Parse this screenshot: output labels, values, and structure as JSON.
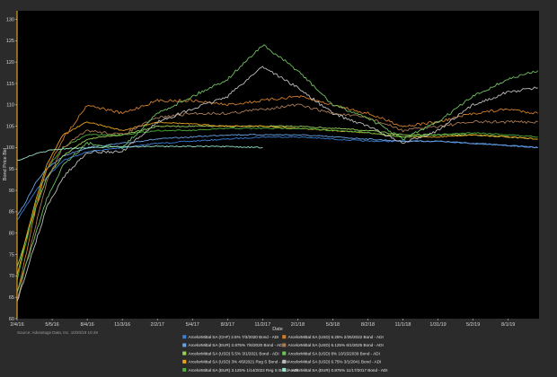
{
  "chart_data": {
    "type": "line",
    "xlabel": "Date",
    "ylabel": "Bond Price Bid",
    "ylim": [
      60,
      132
    ],
    "yticks": [
      60,
      65,
      70,
      75,
      80,
      85,
      90,
      95,
      100,
      105,
      110,
      115,
      120,
      125,
      130
    ],
    "xlim": [
      "2016-02-04",
      "2019-10-20"
    ],
    "xticks": [
      {
        "label": "2/4/16",
        "date": "2016-02-04"
      },
      {
        "label": "5/5/16",
        "date": "2016-05-05"
      },
      {
        "label": "8/4/16",
        "date": "2016-08-04"
      },
      {
        "label": "11/3/16",
        "date": "2016-11-03"
      },
      {
        "label": "2/2/17",
        "date": "2017-02-02"
      },
      {
        "label": "5/4/17",
        "date": "2017-05-04"
      },
      {
        "label": "8/3/17",
        "date": "2017-08-03"
      },
      {
        "label": "11/2/17",
        "date": "2017-11-02"
      },
      {
        "label": "2/1/18",
        "date": "2018-02-01"
      },
      {
        "label": "5/3/18",
        "date": "2018-05-03"
      },
      {
        "label": "8/2/18",
        "date": "2018-08-02"
      },
      {
        "label": "11/1/18",
        "date": "2018-11-01"
      },
      {
        "label": "1/31/19",
        "date": "2019-01-31"
      },
      {
        "label": "5/2/19",
        "date": "2019-05-02"
      },
      {
        "label": "8/1/19",
        "date": "2019-08-01"
      }
    ],
    "grid": false,
    "legend_position": "bottom",
    "source": "Source: Advantage Data, Inc. 10/20/19 10:49",
    "series": [
      {
        "name": "ArcelorMittal SA (CHF) 2.5% 7/3/2020 Bond - ADI",
        "color": "#3a7fd5",
        "points": [
          [
            "2016-02-04",
            83
          ],
          [
            "2016-02-25",
            86
          ],
          [
            "2016-03-24",
            90
          ],
          [
            "2016-04-21",
            93
          ],
          [
            "2016-06-02",
            97
          ],
          [
            "2016-08-04",
            99
          ],
          [
            "2016-11-03",
            100
          ],
          [
            "2017-02-02",
            101
          ],
          [
            "2017-05-04",
            101.5
          ],
          [
            "2017-08-03",
            102
          ],
          [
            "2017-11-02",
            102.5
          ],
          [
            "2018-02-01",
            102.5
          ],
          [
            "2018-05-03",
            102
          ],
          [
            "2018-08-02",
            101.5
          ],
          [
            "2018-11-01",
            101.5
          ],
          [
            "2019-01-31",
            101.5
          ],
          [
            "2019-05-02",
            101
          ],
          [
            "2019-08-01",
            100.5
          ],
          [
            "2019-10-17",
            100
          ]
        ]
      },
      {
        "name": "ArcelorMittal SA (EUR) 2.875% 7/6/2020 Bond - ADI",
        "color": "#6aa0e0",
        "points": [
          [
            "2016-02-04",
            84
          ],
          [
            "2016-02-25",
            87
          ],
          [
            "2016-03-24",
            92
          ],
          [
            "2016-04-21",
            95
          ],
          [
            "2016-06-02",
            98
          ],
          [
            "2016-08-04",
            100
          ],
          [
            "2016-11-03",
            101
          ],
          [
            "2017-02-02",
            102
          ],
          [
            "2017-05-04",
            102.5
          ],
          [
            "2017-08-03",
            103
          ],
          [
            "2017-11-02",
            103
          ],
          [
            "2018-02-01",
            103
          ],
          [
            "2018-05-03",
            102.5
          ],
          [
            "2018-08-02",
            102
          ],
          [
            "2018-11-01",
            101.5
          ],
          [
            "2019-01-31",
            101.5
          ],
          [
            "2019-05-02",
            101
          ],
          [
            "2019-08-01",
            100.5
          ],
          [
            "2019-10-17",
            100
          ]
        ]
      },
      {
        "name": "ArcelorMittal SA (USD) 5.5% 3/1/2021 Bond - ADI",
        "color": "#9bd35a",
        "points": [
          [
            "2016-02-04",
            72
          ],
          [
            "2016-02-25",
            78
          ],
          [
            "2016-03-24",
            86
          ],
          [
            "2016-04-21",
            93
          ],
          [
            "2016-06-02",
            98
          ],
          [
            "2016-08-04",
            102
          ],
          [
            "2016-11-03",
            103
          ],
          [
            "2017-02-02",
            105
          ],
          [
            "2017-05-04",
            105
          ],
          [
            "2017-08-03",
            105
          ],
          [
            "2017-11-02",
            105
          ],
          [
            "2018-02-01",
            105
          ],
          [
            "2018-05-03",
            104.5
          ],
          [
            "2018-08-02",
            104
          ],
          [
            "2018-11-01",
            103
          ],
          [
            "2019-01-31",
            103
          ],
          [
            "2019-05-02",
            103
          ],
          [
            "2019-08-01",
            102.5
          ],
          [
            "2019-10-17",
            102
          ]
        ]
      },
      {
        "name": "ArcelorMittal SA (USD) 3% 4/9/2021 Reg S Bond - ADI",
        "color": "#e6a11f",
        "points": [
          [
            "2016-02-04",
            70
          ],
          [
            "2016-02-25",
            78
          ],
          [
            "2016-03-24",
            88
          ],
          [
            "2016-04-21",
            96
          ],
          [
            "2016-06-02",
            103
          ],
          [
            "2016-08-04",
            106
          ],
          [
            "2016-11-03",
            104
          ],
          [
            "2017-02-02",
            106
          ],
          [
            "2017-05-04",
            105.5
          ],
          [
            "2017-08-03",
            105
          ],
          [
            "2017-11-02",
            105
          ],
          [
            "2018-02-01",
            104.5
          ],
          [
            "2018-05-03",
            104
          ],
          [
            "2018-08-02",
            103.5
          ],
          [
            "2018-11-01",
            102.5
          ],
          [
            "2019-01-31",
            102.5
          ],
          [
            "2019-05-02",
            103
          ],
          [
            "2019-08-01",
            102.5
          ],
          [
            "2019-10-17",
            102
          ]
        ]
      },
      {
        "name": "ArcelorMittal SA (EUR) 3.125% 1/14/2022 Reg S Bond - ADI",
        "color": "#4fae3a",
        "points": [
          [
            "2016-02-04",
            69
          ],
          [
            "2016-02-25",
            77
          ],
          [
            "2016-03-24",
            87
          ],
          [
            "2016-04-21",
            95
          ],
          [
            "2016-06-02",
            100
          ],
          [
            "2016-08-04",
            103
          ],
          [
            "2016-11-03",
            103
          ],
          [
            "2017-02-02",
            104
          ],
          [
            "2017-05-04",
            104
          ],
          [
            "2017-08-03",
            104.5
          ],
          [
            "2017-11-02",
            104.5
          ],
          [
            "2018-02-01",
            104.5
          ],
          [
            "2018-05-03",
            104
          ],
          [
            "2018-08-02",
            103.5
          ],
          [
            "2018-11-01",
            102.5
          ],
          [
            "2019-01-31",
            103
          ],
          [
            "2019-05-02",
            103.5
          ],
          [
            "2019-08-01",
            103
          ],
          [
            "2019-10-17",
            102.5
          ]
        ]
      },
      {
        "name": "ArcelorMittal SA (USD) 6.25% 2/25/2022 Bond - ADI",
        "color": "#d07d2a",
        "points": [
          [
            "2016-02-04",
            66
          ],
          [
            "2016-02-25",
            74
          ],
          [
            "2016-03-24",
            86
          ],
          [
            "2016-04-21",
            95
          ],
          [
            "2016-06-02",
            102
          ],
          [
            "2016-08-04",
            110
          ],
          [
            "2016-11-03",
            108
          ],
          [
            "2017-02-02",
            111
          ],
          [
            "2017-05-04",
            111
          ],
          [
            "2017-08-03",
            110
          ],
          [
            "2017-11-02",
            111
          ],
          [
            "2018-02-01",
            112
          ],
          [
            "2018-05-03",
            110
          ],
          [
            "2018-08-02",
            108
          ],
          [
            "2018-11-01",
            105
          ],
          [
            "2019-01-31",
            106
          ],
          [
            "2019-05-02",
            108
          ],
          [
            "2019-08-01",
            109
          ],
          [
            "2019-10-17",
            108
          ]
        ]
      },
      {
        "name": "ArcelorMittal SA (USD) 6.125% 6/1/2025 Bond - ADI",
        "color": "#a97a55",
        "points": [
          [
            "2016-02-04",
            64
          ],
          [
            "2016-02-25",
            72
          ],
          [
            "2016-03-24",
            82
          ],
          [
            "2016-04-21",
            92
          ],
          [
            "2016-06-02",
            100
          ],
          [
            "2016-08-04",
            104
          ],
          [
            "2016-11-03",
            103
          ],
          [
            "2017-02-02",
            107
          ],
          [
            "2017-05-04",
            108
          ],
          [
            "2017-08-03",
            108
          ],
          [
            "2017-11-02",
            109
          ],
          [
            "2018-02-01",
            110
          ],
          [
            "2018-05-03",
            108
          ],
          [
            "2018-08-02",
            107
          ],
          [
            "2018-11-01",
            104
          ],
          [
            "2019-01-31",
            105
          ],
          [
            "2019-05-02",
            106
          ],
          [
            "2019-08-01",
            106
          ],
          [
            "2019-10-17",
            106
          ]
        ]
      },
      {
        "name": "ArcelorMittal SA (USD) 8% 10/15/2039 Bond - ADI",
        "color": "#6fc060",
        "points": [
          [
            "2016-02-04",
            66
          ],
          [
            "2016-02-25",
            72
          ],
          [
            "2016-03-24",
            80
          ],
          [
            "2016-04-21",
            88
          ],
          [
            "2016-06-02",
            96
          ],
          [
            "2016-08-04",
            101
          ],
          [
            "2016-11-03",
            100
          ],
          [
            "2017-02-02",
            108
          ],
          [
            "2017-05-04",
            112
          ],
          [
            "2017-08-03",
            116
          ],
          [
            "2017-11-02",
            124
          ],
          [
            "2018-02-01",
            118
          ],
          [
            "2018-05-03",
            110
          ],
          [
            "2018-08-02",
            107
          ],
          [
            "2018-11-01",
            102
          ],
          [
            "2019-01-31",
            106
          ],
          [
            "2019-05-02",
            112
          ],
          [
            "2019-08-01",
            116
          ],
          [
            "2019-10-17",
            118
          ]
        ]
      },
      {
        "name": "ArcelorMittal SA (USD) 6.75% 3/1/2041 Bond - ADI",
        "color": "#bdbdbd",
        "points": [
          [
            "2016-02-04",
            64
          ],
          [
            "2016-02-25",
            70
          ],
          [
            "2016-03-24",
            78
          ],
          [
            "2016-04-21",
            86
          ],
          [
            "2016-06-02",
            93
          ],
          [
            "2016-08-04",
            99
          ],
          [
            "2016-11-03",
            99
          ],
          [
            "2017-02-02",
            106
          ],
          [
            "2017-05-04",
            109
          ],
          [
            "2017-08-03",
            112
          ],
          [
            "2017-11-02",
            119
          ],
          [
            "2018-02-01",
            114
          ],
          [
            "2018-05-03",
            108
          ],
          [
            "2018-08-02",
            105
          ],
          [
            "2018-11-01",
            101
          ],
          [
            "2019-01-31",
            104
          ],
          [
            "2019-05-02",
            110
          ],
          [
            "2019-08-01",
            113
          ],
          [
            "2019-10-17",
            114
          ]
        ]
      },
      {
        "name": "ArcelorMittal SA (EUR) 0.875% 11/17/2017 Bond - ADI",
        "color": "#9be3c8",
        "points": [
          [
            "2016-02-04",
            97
          ],
          [
            "2016-03-24",
            98.5
          ],
          [
            "2016-05-05",
            99.5
          ],
          [
            "2016-08-04",
            100
          ],
          [
            "2016-11-03",
            100.2
          ],
          [
            "2017-02-02",
            100.3
          ],
          [
            "2017-05-04",
            100.3
          ],
          [
            "2017-08-03",
            100.2
          ],
          [
            "2017-11-02",
            100
          ]
        ]
      }
    ]
  }
}
